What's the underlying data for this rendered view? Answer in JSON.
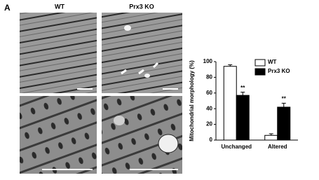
{
  "panel_label": "A",
  "column_labels": [
    "WT",
    "Prx3 KO"
  ],
  "chart_data": {
    "type": "bar",
    "y_label": "Mitochondrial morphology (%)",
    "categories": [
      "Unchanged",
      "Altered"
    ],
    "series": [
      {
        "name": "WT",
        "color": "#ffffff",
        "values": [
          94,
          6
        ],
        "errors": [
          2,
          2
        ]
      },
      {
        "name": "Prx3 KO",
        "color": "#000000",
        "values": [
          57,
          42
        ],
        "errors": [
          4,
          5
        ],
        "significance": [
          "**",
          "**"
        ]
      }
    ],
    "ylim": [
      0,
      100
    ],
    "yticks": [
      0,
      20,
      40,
      60,
      80,
      100
    ]
  }
}
